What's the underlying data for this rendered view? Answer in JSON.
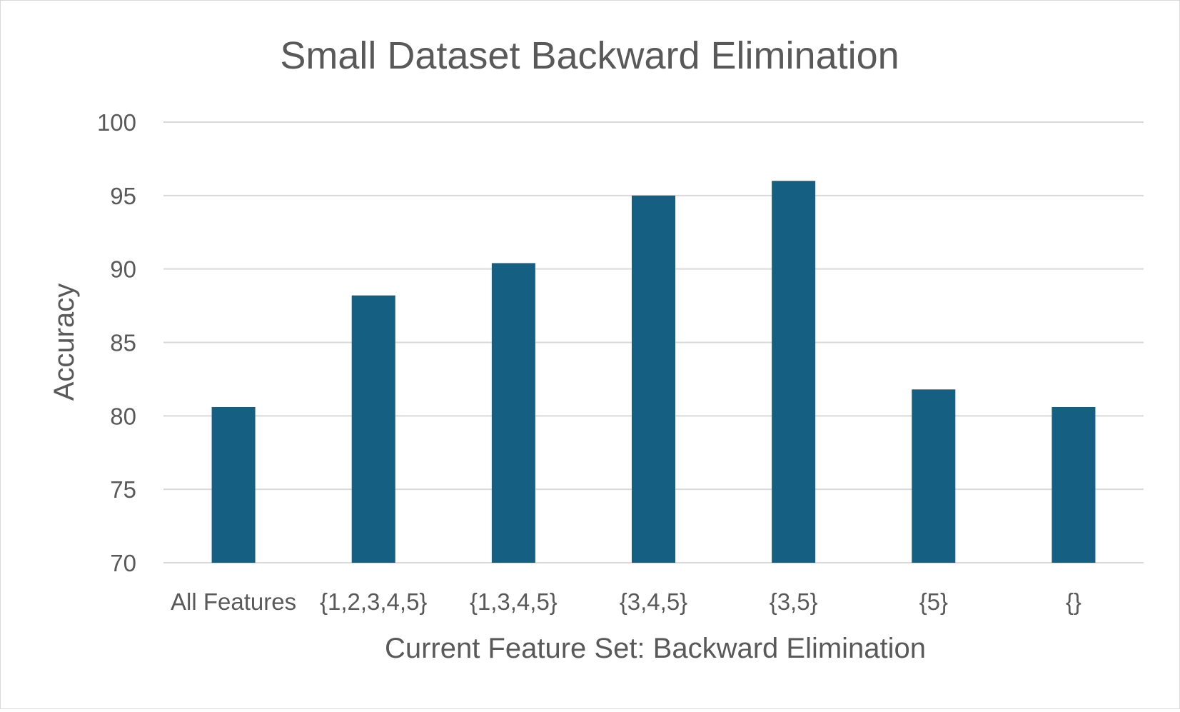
{
  "chart_data": {
    "type": "bar",
    "title": "Small Dataset Backward Elimination",
    "xlabel": "Current Feature Set: Backward Elimination",
    "ylabel": "Accuracy",
    "categories": [
      "All Features",
      "{1,2,3,4,5}",
      "{1,3,4,5}",
      "{3,4,5}",
      "{3,5}",
      "{5}",
      "{}"
    ],
    "values": [
      80.6,
      88.2,
      90.4,
      95.0,
      96.0,
      81.8,
      80.6
    ],
    "ylim": [
      70,
      100
    ],
    "yticks": [
      "70",
      "75",
      "80",
      "85",
      "90",
      "95",
      "100"
    ],
    "grid": true,
    "legend": "none",
    "bar_color": "#155f82",
    "grid_color": "#d9d9d9",
    "text_color": "#595959"
  }
}
